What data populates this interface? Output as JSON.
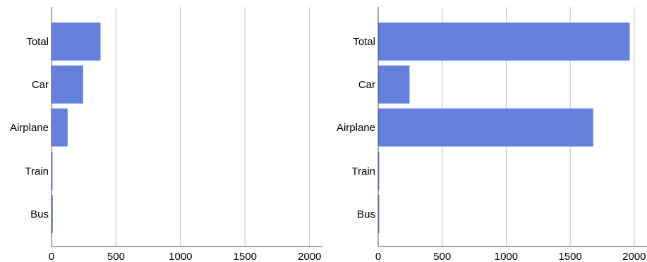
{
  "chart_data": [
    {
      "type": "bar",
      "orientation": "horizontal",
      "categories": [
        "Total",
        "Car",
        "Airplane",
        "Train",
        "Bus"
      ],
      "values": [
        380,
        245,
        125,
        2,
        10
      ],
      "xlim": [
        0,
        2100
      ],
      "xticks": [
        0,
        500,
        1000,
        1500,
        2000
      ],
      "grid": true,
      "title": "",
      "xlabel": "",
      "ylabel": ""
    },
    {
      "type": "bar",
      "orientation": "horizontal",
      "categories": [
        "Total",
        "Car",
        "Airplane",
        "Train",
        "Bus"
      ],
      "values": [
        1965,
        245,
        1680,
        5,
        2
      ],
      "xlim": [
        0,
        2100
      ],
      "xticks": [
        0,
        500,
        1000,
        1500,
        2000
      ],
      "grid": true,
      "title": "",
      "xlabel": "",
      "ylabel": ""
    }
  ],
  "colors": {
    "bar": "#6381dc",
    "grid": "#bdbdbd",
    "axis": "#555555"
  }
}
